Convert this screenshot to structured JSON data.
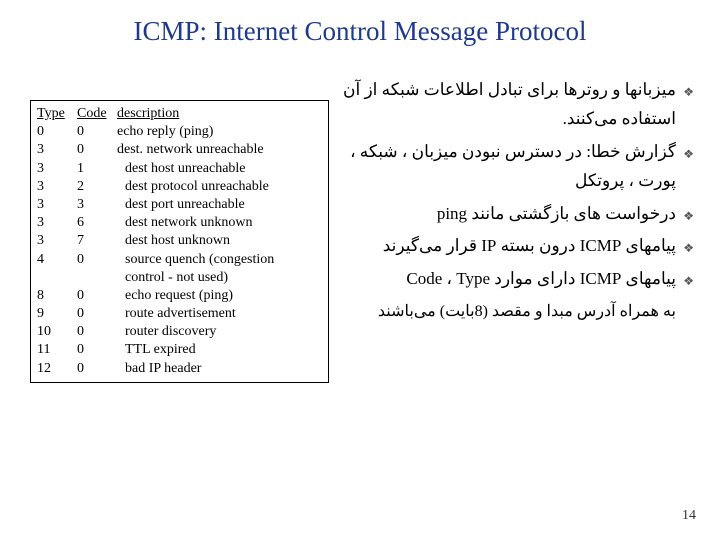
{
  "title": "ICMP: Internet Control Message Protocol",
  "table": {
    "headers": {
      "type": "Type",
      "code": "Code",
      "description": "description"
    },
    "rows": [
      {
        "type": "0",
        "code": "0",
        "desc": "echo reply (ping)",
        "indent": false
      },
      {
        "type": "3",
        "code": "0",
        "desc": "dest. network unreachable",
        "indent": false
      },
      {
        "type": "3",
        "code": "1",
        "desc": "dest host unreachable",
        "indent": true
      },
      {
        "type": "3",
        "code": "2",
        "desc": "dest protocol unreachable",
        "indent": true
      },
      {
        "type": "3",
        "code": "3",
        "desc": "dest port unreachable",
        "indent": true
      },
      {
        "type": "3",
        "code": "6",
        "desc": "dest network unknown",
        "indent": true
      },
      {
        "type": "3",
        "code": "7",
        "desc": "dest host unknown",
        "indent": true
      },
      {
        "type": "4",
        "code": "0",
        "desc": "source quench (congestion",
        "indent": true
      },
      {
        "type": "",
        "code": "",
        "desc": "control - not used)",
        "indent": true
      },
      {
        "type": "8",
        "code": "0",
        "desc": "echo request (ping)",
        "indent": true
      },
      {
        "type": "9",
        "code": "0",
        "desc": "route advertisement",
        "indent": true
      },
      {
        "type": "10",
        "code": "0",
        "desc": "router discovery",
        "indent": true
      },
      {
        "type": "11",
        "code": "0",
        "desc": "TTL expired",
        "indent": true
      },
      {
        "type": "12",
        "code": "0",
        "desc": "bad IP header",
        "indent": true
      }
    ]
  },
  "bullets": {
    "b1": "میزبانها و روترها برای تبادل اطلاعات شبکه از آن استفاده می‌کنند.",
    "b2": "گزارش خطا: در دسترس نبودن میزبان ، شبکه ، پورت ، پروتکل",
    "b3_pre": "درخواست های بازگشتی مانند ",
    "b3_ping": "ping",
    "b4_pre": "پیامهای ",
    "b4_icmp": "ICMP",
    "b4_mid": " درون بسته ",
    "b4_ip": "IP",
    "b4_post": " قرار می‌گیرند",
    "b5_pre": "پیامهای ",
    "b5_icmp": "ICMP",
    "b5_mid": " دارای موارد ",
    "b5_type": "Type",
    "b5_sep": " ، ",
    "b5_code": "Code",
    "sub": "به همراه آدرس مبدا و مقصد (8بایت) می‌باشند"
  },
  "page": "14"
}
